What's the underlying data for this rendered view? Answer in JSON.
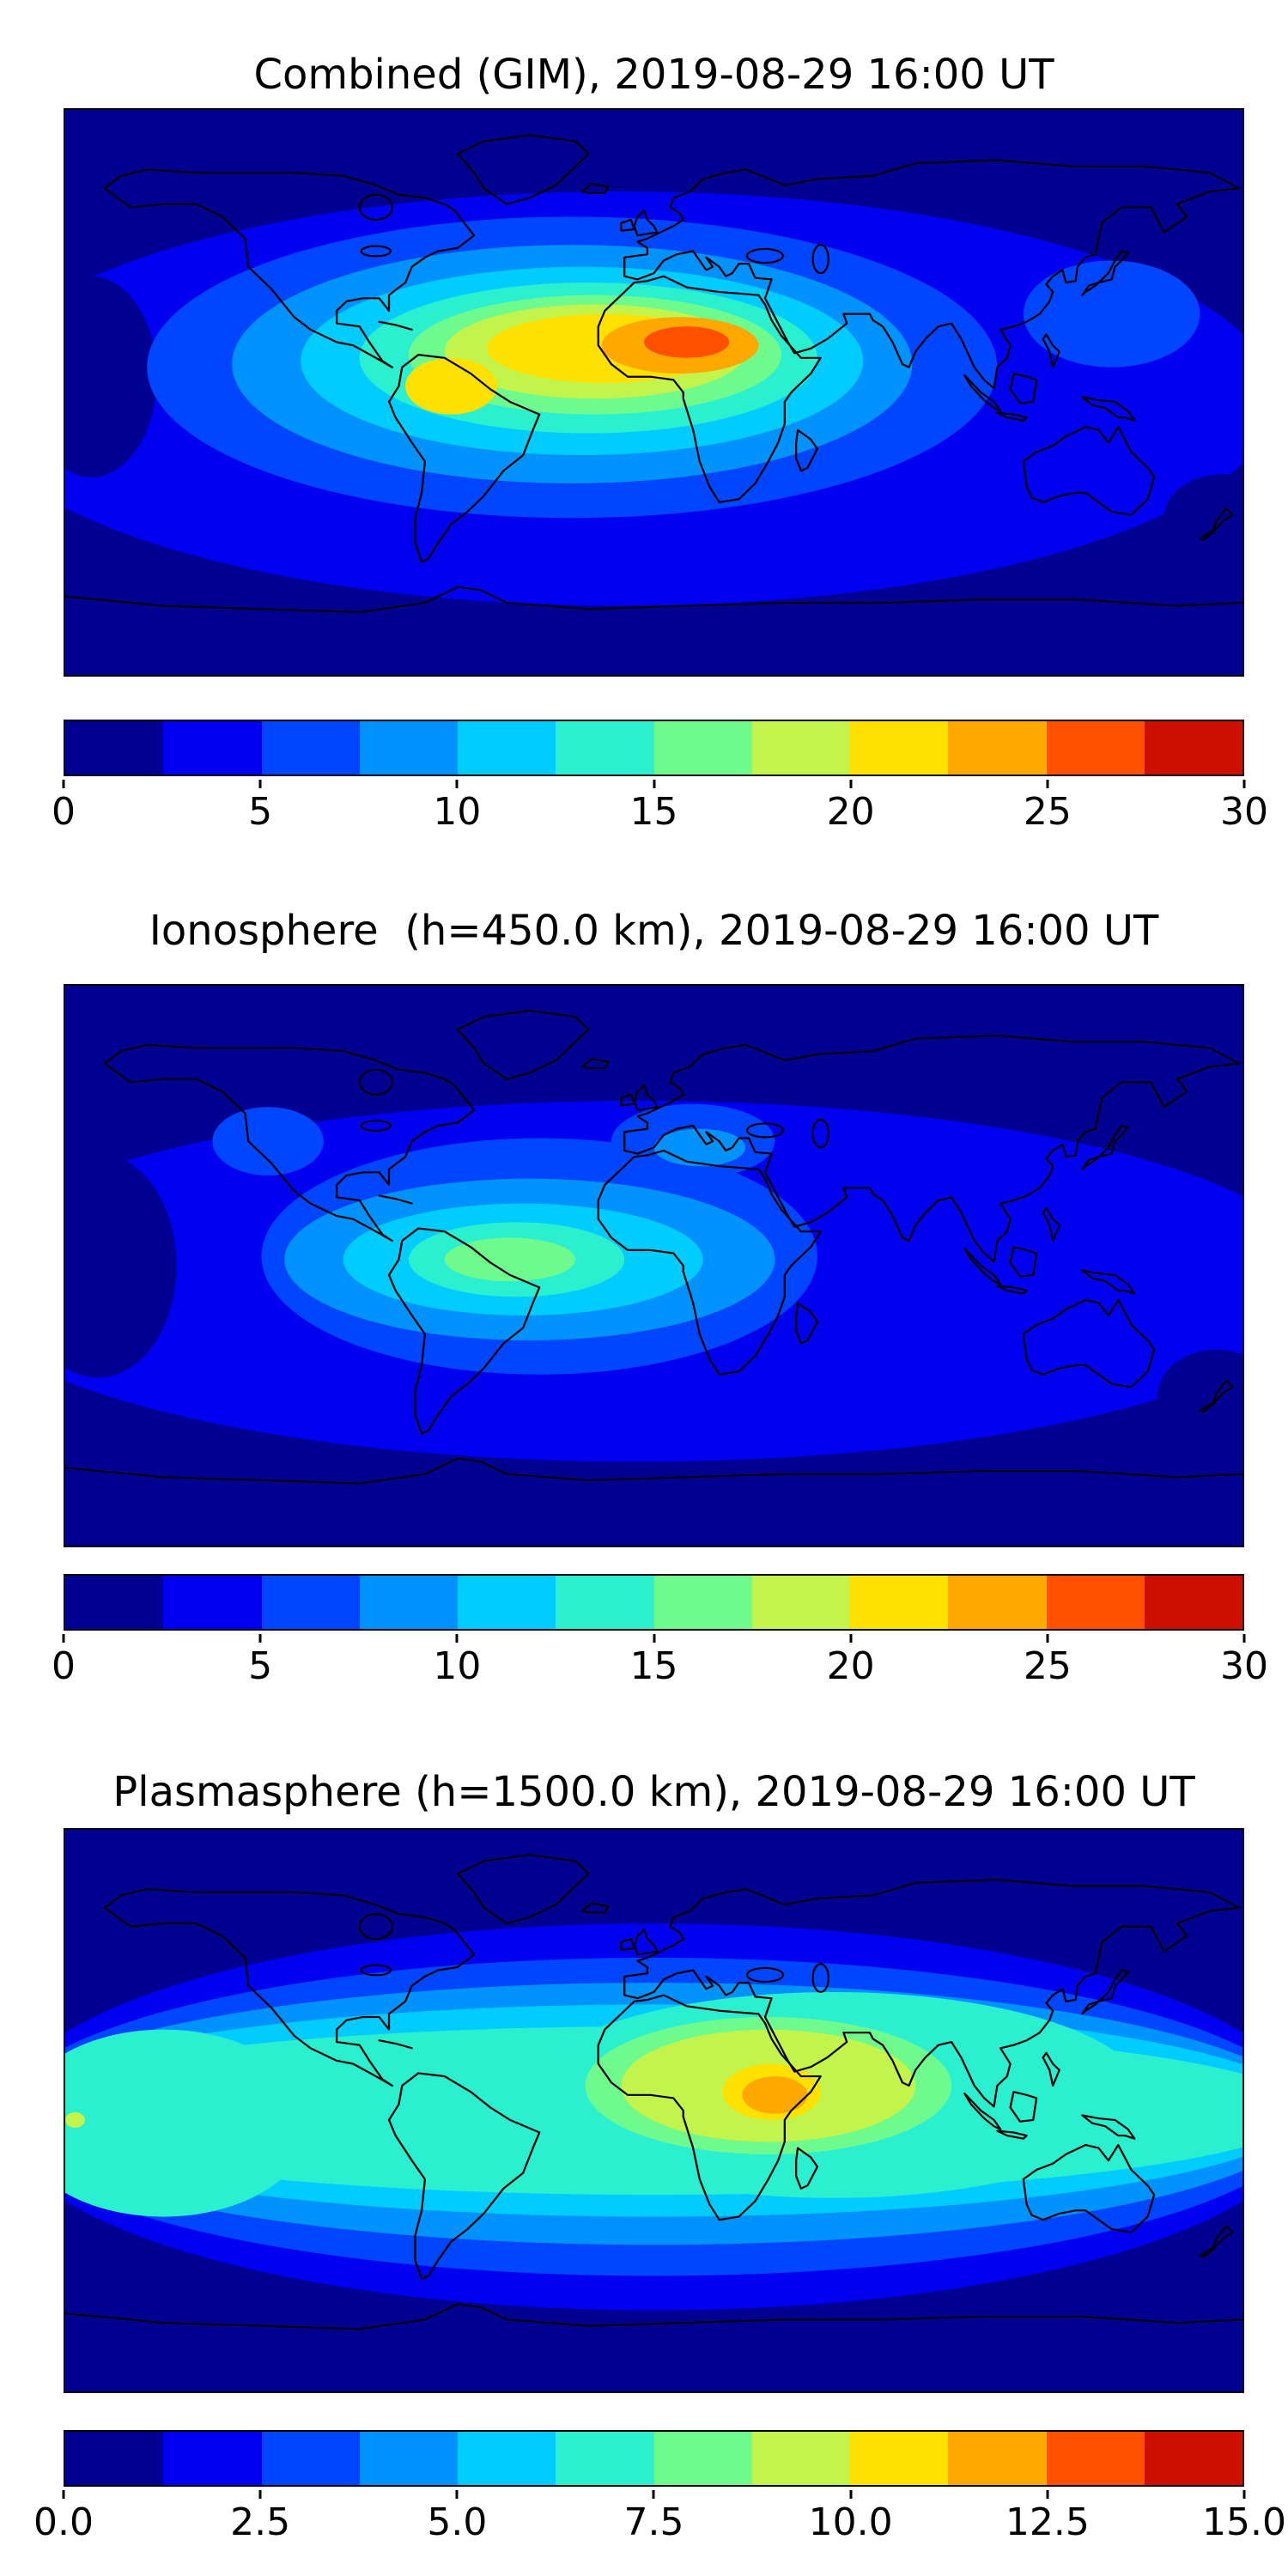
{
  "figure": {
    "background_color": "#ffffff",
    "coastline_color": "#000000",
    "panels": [
      {
        "id": "combined-gim",
        "title": "Combined (GIM), 2019-08-29 16:00 UT",
        "colorbar": {
          "min": 0,
          "max": 30,
          "tick_labels": [
            "0",
            "5",
            "10",
            "15",
            "20",
            "25",
            "30"
          ],
          "band_colors": [
            "#000091",
            "#0000f0",
            "#0045ff",
            "#0092ff",
            "#00ccff",
            "#2af0d0",
            "#6ffa8e",
            "#c3f44c",
            "#ffe100",
            "#ffa800",
            "#ff5000",
            "#cc0f00"
          ]
        },
        "map": {
          "base_color": "#000091",
          "blobs": [
            {
              "color": "#0000f0",
              "lon": -10,
              "lat": -2,
              "rx": 200,
              "ry": 66
            },
            {
              "color": "#000091",
              "lon": -172,
              "lat": 5,
              "rx": 20,
              "ry": 32
            },
            {
              "color": "#000091",
              "lon": 174,
              "lat": -40,
              "rx": 18,
              "ry": 14
            },
            {
              "color": "#0045ff",
              "lon": -25,
              "lat": 8,
              "rx": 130,
              "ry": 48
            },
            {
              "color": "#0045ff",
              "lon": 140,
              "lat": 25,
              "rx": 27,
              "ry": 17
            },
            {
              "color": "#0092ff",
              "lon": -25,
              "lat": 9,
              "rx": 104,
              "ry": 38
            },
            {
              "color": "#00ccff",
              "lon": -22,
              "lat": 10,
              "rx": 86,
              "ry": 30
            },
            {
              "color": "#2af0d0",
              "lon": -20,
              "lat": 11,
              "rx": 70,
              "ry": 24
            },
            {
              "color": "#6ffa8e",
              "lon": -18,
              "lat": 12,
              "rx": 57,
              "ry": 19
            },
            {
              "color": "#c3f44c",
              "lon": -18,
              "lat": 13,
              "rx": 46,
              "ry": 15
            },
            {
              "color": "#ffe100",
              "lon": -15,
              "lat": 14,
              "rx": 36,
              "ry": 11
            },
            {
              "color": "#ffe100",
              "lon": -62,
              "lat": 2,
              "rx": 14,
              "ry": 9
            },
            {
              "color": "#ffa800",
              "lon": 8,
              "lat": 15,
              "rx": 24,
              "ry": 9
            },
            {
              "color": "#ff5000",
              "lon": 10,
              "lat": 16,
              "rx": 13,
              "ry": 5
            }
          ]
        }
      },
      {
        "id": "ionosphere",
        "title": "Ionosphere  (h=450.0 km), 2019-08-29 16:00 UT",
        "colorbar": {
          "min": 0,
          "max": 30,
          "tick_labels": [
            "0",
            "5",
            "10",
            "15",
            "20",
            "25",
            "30"
          ],
          "band_colors": [
            "#000091",
            "#0000f0",
            "#0045ff",
            "#0092ff",
            "#00ccff",
            "#2af0d0",
            "#6ffa8e",
            "#c3f44c",
            "#ffe100",
            "#ffa800",
            "#ff5000",
            "#cc0f00"
          ]
        },
        "map": {
          "base_color": "#000091",
          "blobs": [
            {
              "color": "#0000f0",
              "lon": -5,
              "lat": -5,
              "rx": 210,
              "ry": 58
            },
            {
              "color": "#000091",
              "lon": -170,
              "lat": 0,
              "rx": 24,
              "ry": 36
            },
            {
              "color": "#000091",
              "lon": 172,
              "lat": -42,
              "rx": 18,
              "ry": 15
            },
            {
              "color": "#0045ff",
              "lon": -35,
              "lat": 3,
              "rx": 85,
              "ry": 38
            },
            {
              "color": "#0045ff",
              "lon": 12,
              "lat": 40,
              "rx": 25,
              "ry": 12
            },
            {
              "color": "#0045ff",
              "lon": -118,
              "lat": 40,
              "rx": 17,
              "ry": 11
            },
            {
              "color": "#0092ff",
              "lon": -38,
              "lat": 2,
              "rx": 75,
              "ry": 26
            },
            {
              "color": "#0092ff",
              "lon": 14,
              "lat": 38,
              "rx": 14,
              "ry": 6
            },
            {
              "color": "#00ccff",
              "lon": -40,
              "lat": 2,
              "rx": 55,
              "ry": 18
            },
            {
              "color": "#2af0d0",
              "lon": -42,
              "lat": 2,
              "rx": 33,
              "ry": 12
            },
            {
              "color": "#6ffa8e",
              "lon": -44,
              "lat": 2,
              "rx": 20,
              "ry": 7
            }
          ]
        }
      },
      {
        "id": "plasmasphere",
        "title": "Plasmasphere (h=1500.0 km), 2019-08-29 16:00 UT",
        "colorbar": {
          "min": 0,
          "max": 15,
          "tick_labels": [
            "0.0",
            "2.5",
            "5.0",
            "7.5",
            "10.0",
            "12.5",
            "15.0"
          ],
          "band_colors": [
            "#000091",
            "#0000f0",
            "#0045ff",
            "#0092ff",
            "#00ccff",
            "#2af0d0",
            "#6ffa8e",
            "#c3f44c",
            "#ffe100",
            "#ffa800",
            "#ff5000",
            "#cc0f00"
          ]
        },
        "map": {
          "base_color": "#000091",
          "blobs": [
            {
              "color": "#0000f0",
              "lon": 0,
              "lat": -2,
              "rx": 200,
              "ry": 62
            },
            {
              "color": "#0045ff",
              "lon": 0,
              "lat": -2,
              "rx": 200,
              "ry": 51
            },
            {
              "color": "#0092ff",
              "lon": 0,
              "lat": -1,
              "rx": 200,
              "ry": 42
            },
            {
              "color": "#00ccff",
              "lon": 0,
              "lat": 0,
              "rx": 200,
              "ry": 34
            },
            {
              "color": "#2af0d0",
              "lon": 0,
              "lat": 0,
              "rx": 200,
              "ry": 27
            },
            {
              "color": "#2af0d0",
              "lon": 55,
              "lat": 5,
              "rx": 95,
              "ry": 33
            },
            {
              "color": "#2af0d0",
              "lon": -150,
              "lat": -4,
              "rx": 45,
              "ry": 30
            },
            {
              "color": "#6ffa8e",
              "lon": 35,
              "lat": 8,
              "rx": 56,
              "ry": 22
            },
            {
              "color": "#c3f44c",
              "lon": 35,
              "lat": 8,
              "rx": 45,
              "ry": 18
            },
            {
              "color": "#c3f44c",
              "lon": -177,
              "lat": -3,
              "rx": 3,
              "ry": 2.5
            },
            {
              "color": "#ffe100",
              "lon": 36,
              "lat": 6,
              "rx": 15,
              "ry": 9
            },
            {
              "color": "#ffa800",
              "lon": 37,
              "lat": 5,
              "rx": 10,
              "ry": 6
            }
          ]
        }
      }
    ]
  },
  "chart_data": [
    {
      "type": "heatmap",
      "subtype": "filled-contour world map, equirectangular projection, lon -180..180, lat 90..-90",
      "title": "Combined (GIM), 2019-08-29 16:00 UT",
      "colormap": "jet, 12 discrete bands",
      "value_range": [
        0,
        30
      ],
      "band_step": 2.5,
      "colorbar_ticks": [
        0,
        5,
        10,
        15,
        20,
        25,
        30
      ],
      "features": [
        {
          "label": "peak",
          "value_approx": 26,
          "lon": 10,
          "lat": 16,
          "note": "orange-red core over north-central Africa"
        },
        {
          "label": "secondary high",
          "value_approx": 21,
          "lon": -62,
          "lat": 2,
          "note": "yellow lobe over northern South America"
        },
        {
          "label": "equatorial enhancement",
          "value_approx": 15,
          "note": "broad cyan-green oval spanning South America, Atlantic and Africa, roughly lon -120..75, lat -30..45"
        },
        {
          "label": "minimum",
          "value_approx": 1,
          "note": "dark blue polar caps poleward of about 65 degrees latitude"
        }
      ]
    },
    {
      "type": "heatmap",
      "subtype": "filled-contour world map, equirectangular projection, lon -180..180, lat 90..-90",
      "title": "Ionosphere  (h=450.0 km), 2019-08-29 16:00 UT",
      "colormap": "jet, 12 discrete bands",
      "value_range": [
        0,
        30
      ],
      "band_step": 2.5,
      "colorbar_ticks": [
        0,
        5,
        10,
        15,
        20,
        25,
        30
      ],
      "features": [
        {
          "label": "peak",
          "value_approx": 15,
          "lon": -45,
          "lat": 2,
          "note": "pale-green core over Brazil and the equatorial Atlantic"
        },
        {
          "label": "secondary high",
          "value_approx": 10,
          "lon": 14,
          "lat": 38,
          "note": "cyan patch over the Mediterranean and southern Europe"
        },
        {
          "label": "secondary high",
          "value_approx": 8,
          "lon": -118,
          "lat": 40,
          "note": "light-blue patch over western North America"
        },
        {
          "label": "minimum",
          "value_approx": 1,
          "note": "dark blue over the central Pacific and both polar caps"
        }
      ]
    },
    {
      "type": "heatmap",
      "subtype": "filled-contour world map, equirectangular projection, lon -180..180, lat 90..-90",
      "title": "Plasmasphere (h=1500.0 km), 2019-08-29 16:00 UT",
      "colormap": "jet, 12 discrete bands",
      "value_range": [
        0,
        15
      ],
      "band_step": 1.25,
      "colorbar_ticks": [
        0.0,
        2.5,
        5.0,
        7.5,
        10.0,
        12.5,
        15.0
      ],
      "features": [
        {
          "label": "peak",
          "value_approx": 11.5,
          "lon": 37,
          "lat": 5,
          "note": "orange core over East Africa"
        },
        {
          "label": "high belt",
          "value_approx": 9,
          "lon": 35,
          "lat": 8,
          "note": "yellow-green blob spanning Africa, Arabia and India, roughly lon -10..80, lat -10..26"
        },
        {
          "label": "equatorial belt",
          "value_approx": 6,
          "note": "turquoise band at all longitudes between about lat -28 and 28"
        },
        {
          "label": "minimum",
          "value_approx": 1,
          "note": "dark blue poleward of about 60 degrees latitude"
        }
      ]
    }
  ]
}
